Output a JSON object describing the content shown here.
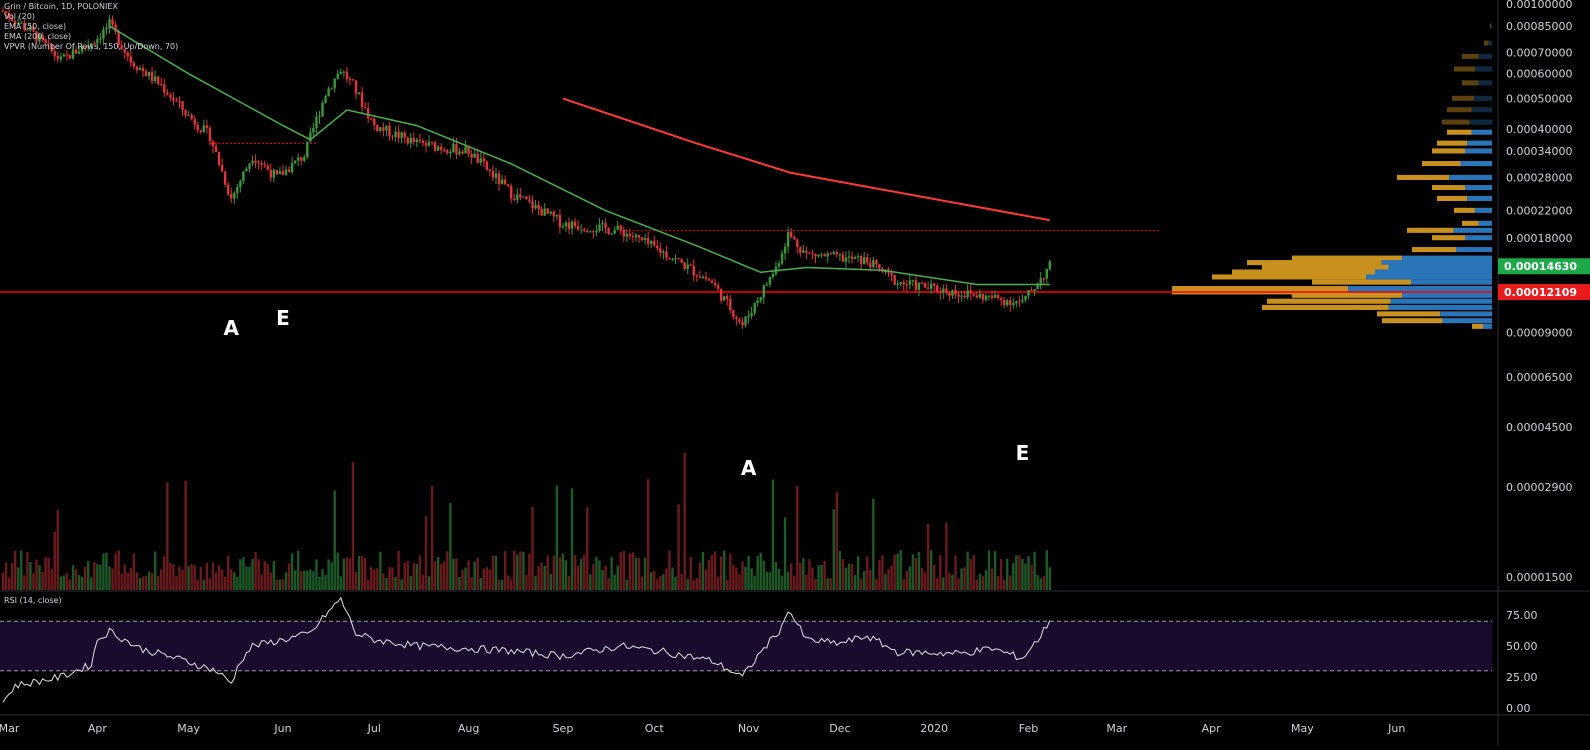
{
  "legend": {
    "symbol_line": "Grin / Bitcoin, 1D, POLONIEX",
    "vol_line": "Vol (20)",
    "ema50_line": "EMA (50, close)",
    "ema200_line": "EMA (200, close)",
    "vpvr_line": "VPVR (Number Of Rows, 150, Up/Down, 70)"
  },
  "rsi_label": "RSI (14, close)",
  "colors": {
    "background": "#000000",
    "up": "#26a69a",
    "candle_up": "#3a9a3a",
    "candle_down": "#e0353a",
    "ema50": "#4caf50",
    "ema200": "#ff3b3b",
    "support_line": "#ff0000",
    "vpvr_up": "#c8901e",
    "vpvr_down": "#2a74b8",
    "rsi_band": "#1a0a2e",
    "rsi_line": "#e0e0e0",
    "last_price_bg": "#1fa84a",
    "support_price_bg": "#e81c1c"
  },
  "chart_data": [
    {
      "type": "candlestick",
      "title": "Grin / Bitcoin, 1D, POLONIEX",
      "x_ticks": [
        "Mar",
        "Apr",
        "May",
        "Jun",
        "Jul",
        "Aug",
        "Sep",
        "Oct",
        "Nov",
        "Dec",
        "2020",
        "Feb",
        "Mar",
        "Apr",
        "May",
        "Jun"
      ],
      "y_ticks": [
        "0.00100000",
        "0.00085000",
        "0.00070000",
        "0.00060000",
        "0.00050000",
        "0.00040000",
        "0.00034000",
        "0.00028000",
        "0.00022000",
        "0.00018000",
        "0.00009000",
        "0.00006500",
        "0.00004500",
        "0.00002900",
        "0.00001500"
      ],
      "price_labels": {
        "last": "0.00014630",
        "support": "0.00012109"
      },
      "ylim": [
        1.5e-05,
        0.001
      ],
      "scale": "log",
      "close_series": [
        [
          "2019-03-01",
          0.00095
        ],
        [
          "2019-03-10",
          0.00082
        ],
        [
          "2019-03-20",
          0.00066
        ],
        [
          "2019-04-01",
          0.00078
        ],
        [
          "2019-04-05",
          0.00086
        ],
        [
          "2019-04-12",
          0.00066
        ],
        [
          "2019-04-22",
          0.00055
        ],
        [
          "2019-05-01",
          0.00044
        ],
        [
          "2019-05-08",
          0.00038
        ],
        [
          "2019-05-15",
          0.00024
        ],
        [
          "2019-05-22",
          0.00033
        ],
        [
          "2019-05-30",
          0.00028
        ],
        [
          "2019-06-08",
          0.00033
        ],
        [
          "2019-06-15",
          0.00052
        ],
        [
          "2019-06-20",
          0.00062
        ],
        [
          "2019-06-24",
          0.00055
        ],
        [
          "2019-07-01",
          0.00041
        ],
        [
          "2019-07-15",
          0.00036
        ],
        [
          "2019-08-01",
          0.00034
        ],
        [
          "2019-08-15",
          0.00025
        ],
        [
          "2019-09-01",
          0.0002
        ],
        [
          "2019-09-20",
          0.00019
        ],
        [
          "2019-10-05",
          0.00016
        ],
        [
          "2019-10-20",
          0.00013
        ],
        [
          "2019-10-30",
          9.5e-05
        ],
        [
          "2019-11-10",
          0.000145
        ],
        [
          "2019-11-14",
          0.000185
        ],
        [
          "2019-11-20",
          0.00016
        ],
        [
          "2019-12-10",
          0.000152
        ],
        [
          "2019-12-20",
          0.00013
        ],
        [
          "2020-01-10",
          0.00012
        ],
        [
          "2020-01-30",
          0.000112
        ],
        [
          "2020-02-08",
          0.0001463
        ]
      ],
      "ema50": [
        [
          "2019-04-05",
          0.00085
        ],
        [
          "2019-05-01",
          0.0006
        ],
        [
          "2019-06-01",
          0.00041
        ],
        [
          "2019-06-10",
          0.00037
        ],
        [
          "2019-06-22",
          0.00046
        ],
        [
          "2019-07-15",
          0.00041
        ],
        [
          "2019-08-15",
          0.00031
        ],
        [
          "2019-09-15",
          0.00022
        ],
        [
          "2019-10-15",
          0.00017
        ],
        [
          "2019-11-05",
          0.00014
        ],
        [
          "2019-11-20",
          0.000145
        ],
        [
          "2019-12-15",
          0.000142
        ],
        [
          "2020-01-15",
          0.000128
        ],
        [
          "2020-02-08",
          0.000128
        ]
      ],
      "ema200": [
        [
          "2019-09-01",
          0.0005
        ],
        [
          "2019-10-15",
          0.00036
        ],
        [
          "2019-11-15",
          0.00029
        ],
        [
          "2020-02-08",
          0.000205
        ]
      ],
      "horizontal_levels": [
        {
          "value": 0.00012109,
          "style": "solid"
        },
        {
          "value": 0.00019,
          "style": "dotted"
        },
        {
          "value": 0.00036,
          "style": "dotted"
        }
      ],
      "annotations": [
        {
          "text": "A",
          "date": "2019-05-15"
        },
        {
          "text": "E",
          "date": "2019-06-01"
        },
        {
          "text": "A",
          "date": "2019-11-01"
        },
        {
          "text": "E",
          "date": "2020-01-30"
        }
      ]
    },
    {
      "type": "line",
      "title": "RSI (14, close)",
      "y_ticks": [
        "75.00",
        "50.00",
        "25.00",
        "0.00"
      ],
      "ylim": [
        0,
        90
      ],
      "band": [
        30,
        70
      ],
      "values": [
        [
          "2019-03-01",
          5
        ],
        [
          "2019-03-05",
          18
        ],
        [
          "2019-03-20",
          25
        ],
        [
          "2019-03-30",
          35
        ],
        [
          "2019-04-01",
          55
        ],
        [
          "2019-04-05",
          62
        ],
        [
          "2019-04-15",
          48
        ],
        [
          "2019-04-30",
          38
        ],
        [
          "2019-05-10",
          30
        ],
        [
          "2019-05-15",
          20
        ],
        [
          "2019-05-18",
          38
        ],
        [
          "2019-05-22",
          50
        ],
        [
          "2019-06-01",
          55
        ],
        [
          "2019-06-10",
          60
        ],
        [
          "2019-06-15",
          75
        ],
        [
          "2019-06-20",
          88
        ],
        [
          "2019-06-25",
          60
        ],
        [
          "2019-07-01",
          55
        ],
        [
          "2019-07-15",
          50
        ],
        [
          "2019-08-01",
          48
        ],
        [
          "2019-08-15",
          46
        ],
        [
          "2019-09-01",
          42
        ],
        [
          "2019-09-20",
          50
        ],
        [
          "2019-10-05",
          45
        ],
        [
          "2019-10-20",
          38
        ],
        [
          "2019-10-30",
          25
        ],
        [
          "2019-11-05",
          45
        ],
        [
          "2019-11-12",
          65
        ],
        [
          "2019-11-14",
          80
        ],
        [
          "2019-11-20",
          55
        ],
        [
          "2019-12-01",
          52
        ],
        [
          "2019-12-10",
          58
        ],
        [
          "2019-12-20",
          45
        ],
        [
          "2020-01-10",
          44
        ],
        [
          "2020-01-20",
          48
        ],
        [
          "2020-01-30",
          40
        ],
        [
          "2020-02-05",
          58
        ],
        [
          "2020-02-08",
          71
        ]
      ]
    }
  ]
}
